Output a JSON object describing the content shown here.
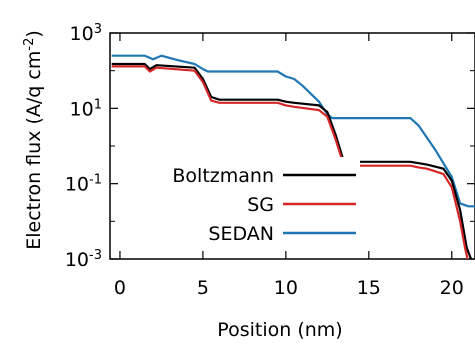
{
  "chart_data": {
    "type": "line",
    "xlabel": "Position (nm)",
    "ylabel": "Electron flux (A/q cm",
    "ylabel_sup": "-2",
    "ylabel_close": ")",
    "xlim": [
      -0.6,
      21.4
    ],
    "ylim": [
      0.001,
      1000
    ],
    "yscale": "log",
    "x_ticks": [
      "0",
      "5",
      "10",
      "15",
      "20"
    ],
    "y_ticks": [
      {
        "value": 0.001,
        "base": "10",
        "exp": "-3"
      },
      {
        "value": 0.1,
        "base": "10",
        "exp": "-1"
      },
      {
        "value": 10,
        "base": "10",
        "exp": "1"
      },
      {
        "value": 1000,
        "base": "10",
        "exp": "3"
      }
    ],
    "legend_position": "bottom-left",
    "series": [
      {
        "name": "Boltzmann",
        "color": "#000000",
        "x": [
          -0.5,
          1.5,
          1.8,
          2.2,
          4.5,
          5.0,
          5.5,
          6.0,
          9.0,
          9.5,
          10.0,
          10.5,
          12.0,
          12.5,
          13.0,
          13.5,
          14.0,
          17.0,
          17.5,
          18.0,
          18.5,
          19.5,
          20.0,
          20.5,
          20.9,
          21.2
        ],
        "y": [
          150,
          150,
          110,
          140,
          120,
          60,
          20,
          17,
          17,
          17,
          15,
          14,
          12,
          8,
          2,
          0.38,
          0.38,
          0.38,
          0.38,
          0.35,
          0.32,
          0.25,
          0.12,
          0.02,
          0.002,
          0.0009
        ]
      },
      {
        "name": "SG",
        "color": "#d62728",
        "x": [
          -0.5,
          1.5,
          1.8,
          2.2,
          4.5,
          5.0,
          5.5,
          6.0,
          9.0,
          9.5,
          10.0,
          10.5,
          12.0,
          12.5,
          13.0,
          13.5,
          14.0,
          17.0,
          17.5,
          18.0,
          18.5,
          19.5,
          20.0,
          20.5,
          20.8,
          21.0
        ],
        "y": [
          130,
          130,
          95,
          120,
          100,
          50,
          16,
          14,
          14,
          14,
          12,
          11,
          9,
          6,
          1.5,
          0.3,
          0.3,
          0.3,
          0.3,
          0.27,
          0.25,
          0.18,
          0.08,
          0.01,
          0.002,
          0.0008
        ]
      },
      {
        "name": "SEDAN",
        "color": "#1f77b4",
        "x": [
          -0.5,
          1.5,
          2.0,
          2.5,
          3.5,
          4.5,
          5.0,
          5.3,
          9.0,
          9.5,
          10.0,
          10.5,
          11.0,
          12.0,
          12.5,
          12.8,
          17.0,
          17.5,
          18.0,
          19.0,
          20.0,
          20.5,
          21.0,
          21.4
        ],
        "y": [
          250,
          250,
          200,
          250,
          190,
          150,
          110,
          95,
          95,
          95,
          70,
          60,
          40,
          15,
          7,
          5.5,
          5.5,
          5.5,
          3.5,
          0.8,
          0.15,
          0.03,
          0.025,
          0.025
        ]
      }
    ]
  }
}
